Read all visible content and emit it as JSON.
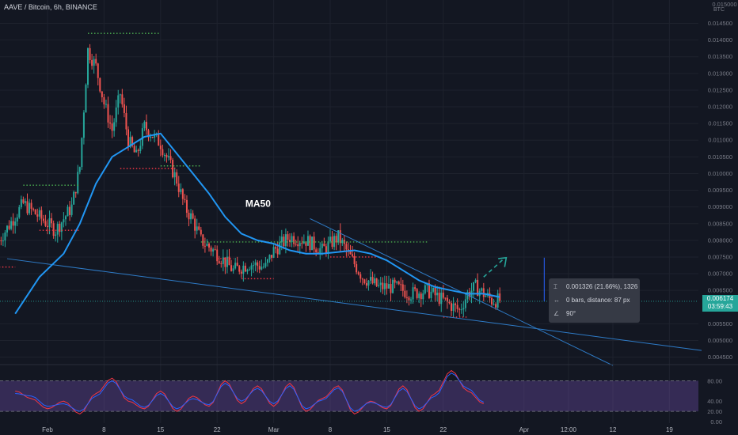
{
  "header": {
    "title": "AAVE / Bitcoin, 6h, BINANCE"
  },
  "colors": {
    "background": "#131722",
    "up": "#26a69a",
    "down": "#ef5350",
    "ma": "#2196f3",
    "trendline": "#2e7bc7",
    "level_green": "#4caf50",
    "level_red": "#f23645",
    "rsi_band": "#7e57c2",
    "rsi_line": "#f23645",
    "rsi_signal": "#2962ff"
  },
  "chart_data": [
    {
      "type": "candlestick",
      "title": "AAVE / Bitcoin, 6h, BINANCE",
      "currency": "BTC",
      "x_tick_labels": [
        "Feb",
        "8",
        "15",
        "22",
        "Mar",
        "8",
        "15",
        "22",
        "Apr",
        "12:00",
        "12",
        "19"
      ],
      "y_tick_labels": [
        "0.014500",
        "0.014000",
        "0.013500",
        "0.013000",
        "0.012500",
        "0.012000",
        "0.011500",
        "0.011000",
        "0.010500",
        "0.010000",
        "0.009500",
        "0.009000",
        "0.008500",
        "0.008000",
        "0.007500",
        "0.007000",
        "0.006500",
        "0.005500",
        "0.005000",
        "0.004500"
      ],
      "y_top_partial_label": "0.015000",
      "ylim": [
        0.0043,
        0.0152
      ],
      "series": [
        {
          "name": "MA50",
          "kind": "moving_average",
          "x": [
            "Jan 28",
            "Jan 31",
            "Feb 3",
            "Feb 5",
            "Feb 7",
            "Feb 9",
            "Feb 11",
            "Feb 13",
            "Feb 15",
            "Feb 17",
            "Feb 19",
            "Feb 21",
            "Feb 23",
            "Feb 25",
            "Feb 27",
            "Mar 1",
            "Mar 3",
            "Mar 5",
            "Mar 7",
            "Mar 9",
            "Mar 11",
            "Mar 13",
            "Mar 15",
            "Mar 17",
            "Mar 19",
            "Mar 21",
            "Mar 23",
            "Mar 25",
            "Mar 27",
            "Mar 29"
          ],
          "values": [
            0.0058,
            0.0069,
            0.0076,
            0.0085,
            0.0097,
            0.0105,
            0.0108,
            0.0111,
            0.0112,
            0.0106,
            0.01,
            0.0094,
            0.0087,
            0.0082,
            0.008,
            0.0079,
            0.0077,
            0.0076,
            0.0076,
            0.00765,
            0.0077,
            0.0076,
            0.0074,
            0.0071,
            0.0068,
            0.0066,
            0.0065,
            0.0064,
            0.0064,
            0.0063
          ]
        }
      ],
      "annotations": {
        "ma_label": "MA50",
        "last_price": "0.006174",
        "countdown": "03:59:43",
        "measurement": {
          "price_change": "0.001326 (21.66%), 1326",
          "bars": "0 bars, distance: 87 px",
          "angle": "90°"
        },
        "levels": [
          {
            "color": "green",
            "date_start": "Feb 6",
            "date_end": "Feb 15",
            "price": 0.0142
          },
          {
            "color": "green",
            "date_start": "Jan 29",
            "date_end": "Feb 5",
            "price": 0.00965
          },
          {
            "color": "red",
            "date_start": "Jan 31",
            "date_end": "Feb 5",
            "price": 0.0083
          },
          {
            "color": "red",
            "date_start": "Jan 26",
            "date_end": "Jan 28",
            "price": 0.0072
          },
          {
            "color": "red",
            "date_start": "Feb 10",
            "date_end": "Feb 17",
            "price": 0.01015
          },
          {
            "color": "green",
            "date_start": "Feb 15",
            "date_end": "Feb 20",
            "price": 0.01023
          },
          {
            "color": "green",
            "date_start": "Feb 20",
            "date_end": "Mar 20",
            "price": 0.00795
          },
          {
            "color": "red",
            "date_start": "Feb 22",
            "date_end": "Feb 24",
            "price": 0.00745
          },
          {
            "color": "red",
            "date_start": "Feb 25",
            "date_end": "Feb 29",
            "price": 0.00685
          },
          {
            "color": "red",
            "date_start": "Mar 8",
            "date_end": "Mar 14",
            "price": 0.0075
          },
          {
            "color": "red",
            "date_start": "Mar 22",
            "date_end": "Mar 25",
            "price": 0.0057
          }
        ]
      }
    },
    {
      "type": "line",
      "kind": "oscillator",
      "y_tick_labels": [
        "80.00",
        "40.00",
        "20.00",
        "0.00"
      ],
      "ylim": [
        -3,
        110
      ],
      "band": [
        20,
        80
      ],
      "x": [
        "Jan 28",
        "Jan 30",
        "Feb 1",
        "Feb 3",
        "Feb 5",
        "Feb 7",
        "Feb 9",
        "Feb 11",
        "Feb 13",
        "Feb 15",
        "Feb 17",
        "Feb 19",
        "Feb 21",
        "Feb 23",
        "Feb 25",
        "Feb 27",
        "Mar 1",
        "Mar 3",
        "Mar 5",
        "Mar 7",
        "Mar 9",
        "Mar 11",
        "Mar 13",
        "Mar 15",
        "Mar 17",
        "Mar 19",
        "Mar 21",
        "Mar 23",
        "Mar 25",
        "Mar 27"
      ],
      "series": [
        {
          "values": [
            60,
            45,
            25,
            40,
            15,
            55,
            85,
            40,
            25,
            60,
            20,
            50,
            30,
            80,
            35,
            70,
            30,
            75,
            20,
            45,
            70,
            15,
            40,
            25,
            70,
            20,
            55,
            100,
            60,
            35
          ]
        },
        {
          "values": [
            55,
            50,
            30,
            35,
            20,
            50,
            80,
            45,
            28,
            55,
            25,
            45,
            33,
            75,
            40,
            65,
            35,
            70,
            25,
            42,
            66,
            20,
            38,
            28,
            65,
            25,
            50,
            95,
            65,
            38
          ]
        }
      ]
    }
  ]
}
